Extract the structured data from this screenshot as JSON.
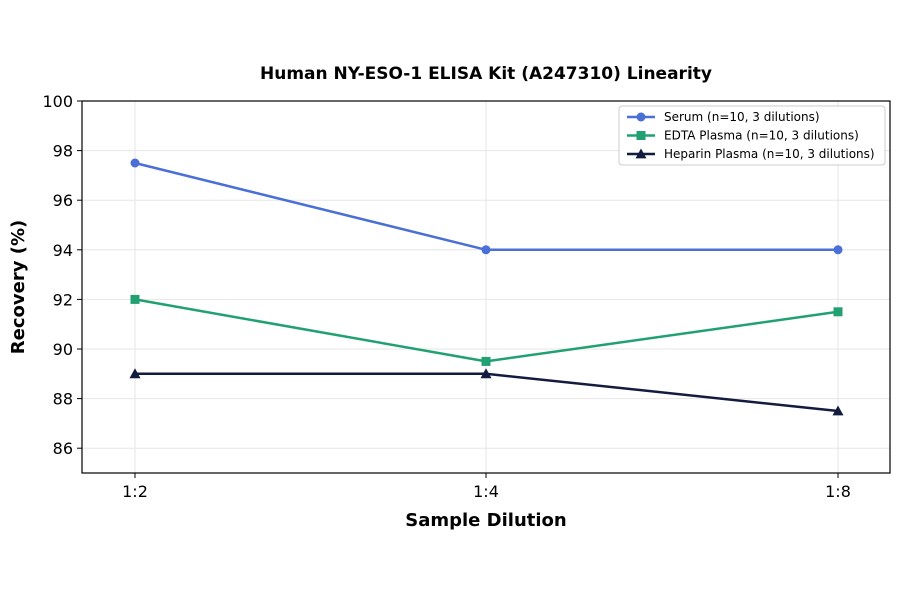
{
  "chart_data": {
    "type": "line",
    "title": "Human NY-ESO-1 ELISA Kit (A247310) Linearity",
    "xlabel": "Sample Dilution",
    "ylabel": "Recovery (%)",
    "categories": [
      "1:2",
      "1:4",
      "1:8"
    ],
    "ylim": [
      85,
      100
    ],
    "yticks": [
      86,
      88,
      90,
      92,
      94,
      96,
      98,
      100
    ],
    "grid": true,
    "legend_position": "top-right",
    "series": [
      {
        "name": "Serum (n=10, 3 dilutions)",
        "values": [
          97.5,
          94.0,
          94.0
        ],
        "color": "#4a6fd6",
        "marker": "circle"
      },
      {
        "name": "EDTA Plasma (n=10, 3 dilutions)",
        "values": [
          92.0,
          89.5,
          91.5
        ],
        "color": "#21a072",
        "marker": "square"
      },
      {
        "name": "Heparin Plasma (n=10, 3 dilutions)",
        "values": [
          89.0,
          89.0,
          87.5
        ],
        "color": "#131c3f",
        "marker": "triangle"
      }
    ]
  }
}
